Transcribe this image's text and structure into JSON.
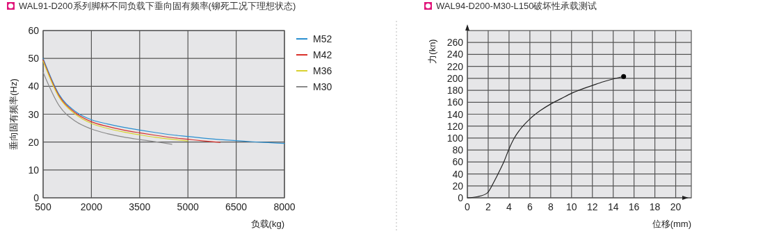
{
  "chart_data": [
    {
      "type": "line",
      "title": "WAL91-D200系列脚杯不同负载下垂向固有频率(铆死工况下理想状态)",
      "xlabel": "负载(kg)",
      "ylabel": "垂向固有频率(Hz)",
      "xlim": [
        500,
        8000
      ],
      "xticks": [
        500,
        2000,
        3500,
        5000,
        6500,
        8000
      ],
      "ylim": [
        0,
        60
      ],
      "yticks": [
        0,
        10,
        20,
        30,
        40,
        50,
        60
      ],
      "grid": true,
      "legend": "right",
      "series": [
        {
          "name": "M52",
          "color": "#2a8fd0",
          "x": [
            500,
            1000,
            1500,
            2000,
            2500,
            3000,
            3500,
            4000,
            4500,
            5000,
            5500,
            6000,
            6500,
            7000,
            7500,
            8000
          ],
          "values": [
            50,
            37,
            31,
            28,
            26.5,
            25.3,
            24.3,
            23.4,
            22.6,
            22,
            21.4,
            20.9,
            20.5,
            20.1,
            19.8,
            19.5
          ]
        },
        {
          "name": "M42",
          "color": "#d9302a",
          "x": [
            500,
            1000,
            1500,
            2000,
            2500,
            3000,
            3500,
            4000,
            4500,
            5000,
            5500,
            6000
          ],
          "values": [
            49.5,
            36.5,
            30.5,
            27.3,
            25.6,
            24.3,
            23.3,
            22.4,
            21.6,
            21,
            20.4,
            19.9
          ]
        },
        {
          "name": "M36",
          "color": "#d8d130",
          "x": [
            500,
            1000,
            1500,
            2000,
            2500,
            3000,
            3500,
            4000,
            4500,
            5000
          ],
          "values": [
            49,
            36,
            30,
            26.7,
            24.9,
            23.6,
            22.6,
            21.7,
            21,
            20.4
          ]
        },
        {
          "name": "M30",
          "color": "#8a8a8a",
          "x": [
            500,
            1000,
            1500,
            2000,
            2500,
            3000,
            3500,
            4000,
            4500
          ],
          "values": [
            45,
            33,
            27.5,
            24.7,
            23,
            21.8,
            20.9,
            20.1,
            19.2
          ]
        }
      ]
    },
    {
      "type": "line",
      "title": "WAL94-D200-M30-L150破坏性承载测试",
      "xlabel": "位移(mm)",
      "ylabel": "力(kn)",
      "xlim": [
        0,
        21.5
      ],
      "xticks": [
        0,
        2,
        4,
        6,
        8,
        10,
        12,
        14,
        16,
        18,
        20
      ],
      "ylim": [
        0,
        280
      ],
      "yticks": [
        0,
        20,
        40,
        60,
        80,
        100,
        120,
        140,
        160,
        180,
        200,
        220,
        240,
        260
      ],
      "grid": true,
      "series": [
        {
          "color": "#222222",
          "x": [
            0,
            1,
            1.9,
            2.5,
            3,
            3.5,
            4,
            4.5,
            5,
            6,
            7,
            8,
            9,
            10,
            11,
            12,
            13,
            14,
            15
          ],
          "values": [
            0,
            2,
            8,
            25,
            42,
            60,
            82,
            100,
            113,
            132,
            146,
            157,
            166,
            175,
            182,
            188,
            194,
            199,
            203
          ]
        },
        {
          "type": "scatter",
          "color": "#000000",
          "marker": "circle",
          "x": [
            15
          ],
          "values": [
            203
          ]
        }
      ]
    }
  ]
}
